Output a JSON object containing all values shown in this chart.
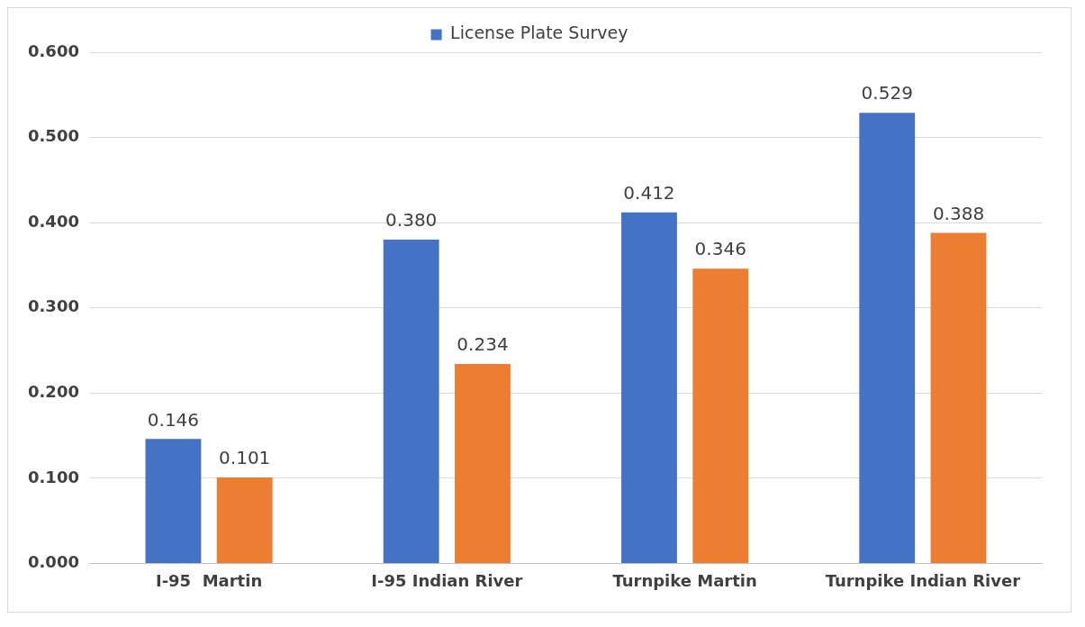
{
  "chart_data": {
    "type": "bar",
    "categories": [
      "I-95  Martin",
      "I-95 Indian River",
      "Turnpike Martin",
      "Turnpike Indian River"
    ],
    "series": [
      {
        "name": "License Plate Survey",
        "color": "#4472c4",
        "values": [
          0.146,
          0.38,
          0.412,
          0.529
        ],
        "value_labels": [
          "0.146",
          "0.380",
          "0.412",
          "0.529"
        ]
      },
      {
        "color": "#ed7d31",
        "values": [
          0.101,
          0.234,
          0.346,
          0.388
        ],
        "value_labels": [
          "0.101",
          "0.234",
          "0.346",
          "0.388"
        ]
      }
    ],
    "ylim": [
      0,
      0.6
    ],
    "yticks": [
      {
        "value": 0,
        "label": "0.000"
      },
      {
        "value": 0.1,
        "label": "0.100"
      },
      {
        "value": 0.2,
        "label": "0.200"
      },
      {
        "value": 0.3,
        "label": "0.300"
      },
      {
        "value": 0.4,
        "label": "0.400"
      },
      {
        "value": 0.5,
        "label": "0.500"
      },
      {
        "value": 0.6,
        "label": "0.600"
      }
    ],
    "grid": "y",
    "legend": "top"
  }
}
